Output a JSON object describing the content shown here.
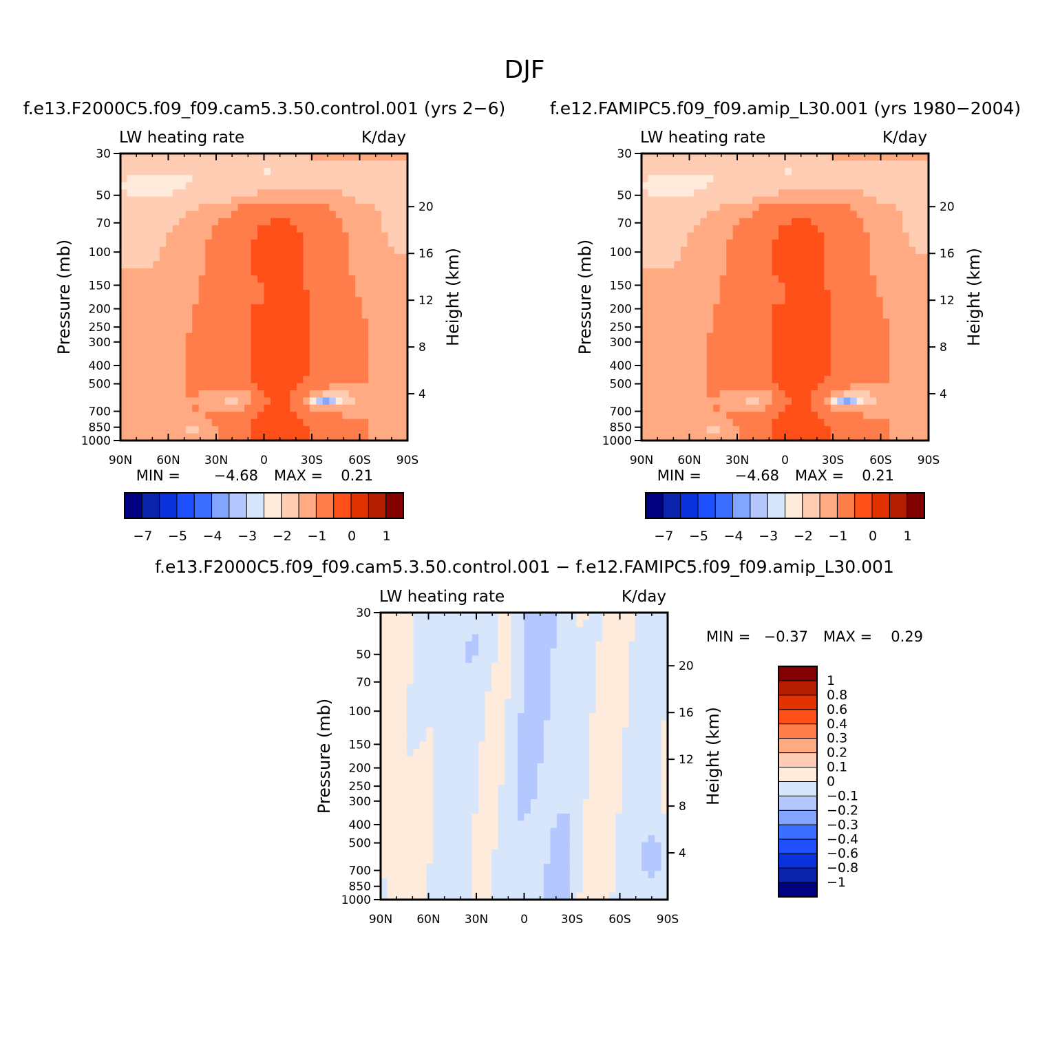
{
  "figure_title": "DJF",
  "colors": {
    "main_scale": [
      "#000080",
      "#0a23aa",
      "#0a32dc",
      "#1e50ff",
      "#3c6eff",
      "#82a5ff",
      "#b4c8ff",
      "#d7e6fa",
      "#ffebdc",
      "#ffcdb4",
      "#ffaa82",
      "#ff7d4b",
      "#ff5019",
      "#e13200",
      "#b41e00",
      "#820000"
    ],
    "diff_scale": [
      "#000080",
      "#0a23aa",
      "#0a32dc",
      "#1e50ff",
      "#3c6eff",
      "#82a5ff",
      "#b4c8ff",
      "#d7e6fa",
      "#ffebdc",
      "#ffcdb4",
      "#ffaa82",
      "#ff7d4b",
      "#ff5019",
      "#e13200",
      "#b41e00",
      "#820000"
    ]
  },
  "chart_data": [
    {
      "type": "heatmap",
      "title": "f.e13.F2000C5.f09_f09.cam5.3.50.control.001 (yrs 2−6)",
      "left_string": "LW heating rate",
      "right_string": "K/day",
      "xlabel": "",
      "ylabel": "Pressure (mb)",
      "ylabel_right": "Height (km)",
      "x_ticks": [
        "90N",
        "60N",
        "30N",
        "0",
        "30S",
        "60S",
        "90S"
      ],
      "y_ticks": [
        "30",
        "50",
        "70",
        "100",
        "150",
        "200",
        "250",
        "300",
        "400",
        "500",
        "700",
        "850",
        "1000"
      ],
      "y_right_ticks": [
        "20",
        "16",
        "12",
        "8",
        "4"
      ],
      "ylim": [
        1000,
        30
      ],
      "y_scale": "log",
      "min_label": "MIN =",
      "min_value": "−4.68",
      "max_label": "MAX =",
      "max_value": "0.21",
      "colorbar_labels": [
        "−7",
        "−5",
        "−4",
        "−3",
        "−2",
        "−1",
        "0",
        "1"
      ]
    },
    {
      "type": "heatmap",
      "title": "f.e12.FAMIPC5.f09_f09.amip_L30.001 (yrs 1980−2004)",
      "left_string": "LW heating rate",
      "right_string": "K/day",
      "xlabel": "",
      "ylabel": "Pressure (mb)",
      "ylabel_right": "Height (km)",
      "x_ticks": [
        "90N",
        "60N",
        "30N",
        "0",
        "30S",
        "60S",
        "90S"
      ],
      "y_ticks": [
        "30",
        "50",
        "70",
        "100",
        "150",
        "200",
        "250",
        "300",
        "400",
        "500",
        "700",
        "850",
        "1000"
      ],
      "y_right_ticks": [
        "20",
        "16",
        "12",
        "8",
        "4"
      ],
      "ylim": [
        1000,
        30
      ],
      "y_scale": "log",
      "min_label": "MIN =",
      "min_value": "−4.68",
      "max_label": "MAX =",
      "max_value": "0.21",
      "colorbar_labels": [
        "−7",
        "−5",
        "−4",
        "−3",
        "−2",
        "−1",
        "0",
        "1"
      ]
    },
    {
      "type": "heatmap",
      "title": "f.e13.F2000C5.f09_f09.cam5.3.50.control.001 − f.e12.FAMIPC5.f09_f09.amip_L30.001",
      "left_string": "LW heating rate",
      "right_string": "K/day",
      "xlabel": "",
      "ylabel": "Pressure (mb)",
      "ylabel_right": "Height (km)",
      "x_ticks": [
        "90N",
        "60N",
        "30N",
        "0",
        "30S",
        "60S",
        "90S"
      ],
      "y_ticks": [
        "30",
        "50",
        "70",
        "100",
        "150",
        "200",
        "250",
        "300",
        "400",
        "500",
        "700",
        "850",
        "1000"
      ],
      "y_right_ticks": [
        "20",
        "16",
        "12",
        "8",
        "4"
      ],
      "ylim": [
        1000,
        30
      ],
      "y_scale": "log",
      "min_label": "MIN =",
      "min_value": "−0.37",
      "max_label": "MAX =",
      "max_value": "0.29",
      "colorbar_labels": [
        "1",
        "0.8",
        "0.6",
        "0.4",
        "0.3",
        "0.2",
        "0.1",
        "0",
        "−0.1",
        "−0.2",
        "−0.3",
        "−0.4",
        "−0.6",
        "−0.8",
        "−1"
      ]
    }
  ]
}
